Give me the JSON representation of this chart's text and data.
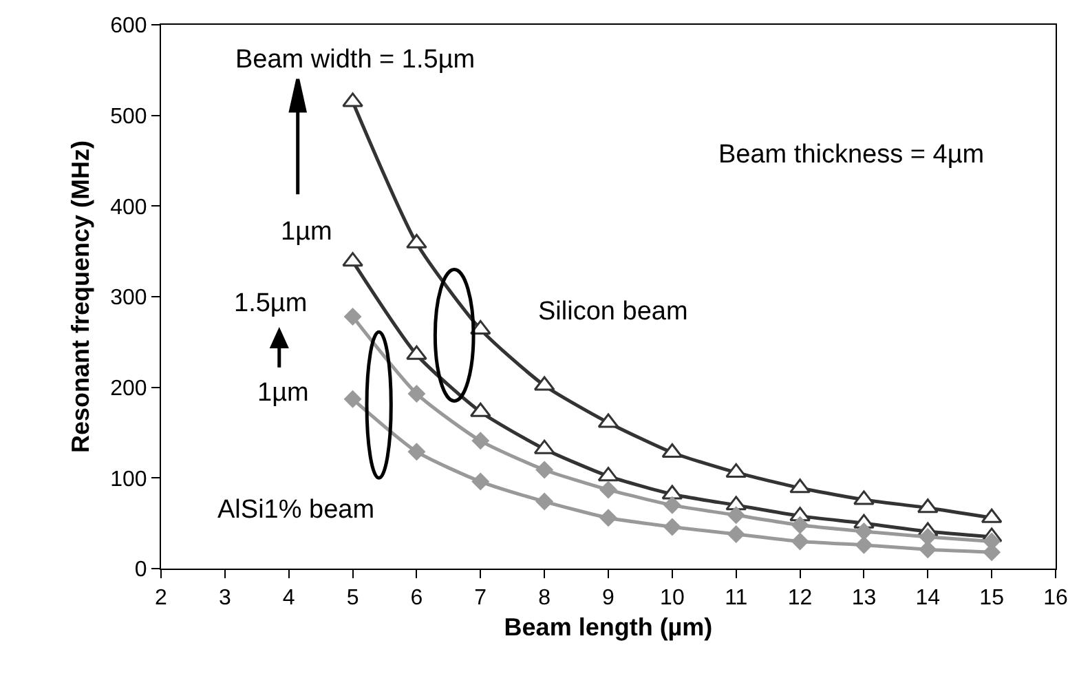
{
  "chart_data": {
    "type": "line",
    "xlabel": "Beam length (µm)",
    "ylabel": "Resonant frequency (MHz)",
    "x": [
      5,
      6,
      7,
      8,
      9,
      10,
      11,
      12,
      13,
      14,
      15
    ],
    "xlim": [
      2,
      16
    ],
    "xticks": [
      2,
      3,
      4,
      5,
      6,
      7,
      8,
      9,
      10,
      11,
      12,
      13,
      14,
      15,
      16
    ],
    "ylim": [
      0,
      600
    ],
    "yticks": [
      0,
      100,
      200,
      300,
      400,
      500,
      600
    ],
    "series": [
      {
        "color": "#333333",
        "marker": "triangle",
        "values": [
          515,
          359,
          264,
          202,
          161,
          128,
          106,
          89,
          76,
          67,
          56
        ]
      },
      {
        "color": "#333333",
        "marker": "triangle",
        "values": [
          339,
          236,
          173,
          132,
          102,
          82,
          70,
          58,
          50,
          41,
          35
        ]
      },
      {
        "color": "#999999",
        "marker": "diamond",
        "values": [
          278,
          193,
          141,
          109,
          87,
          70,
          59,
          48,
          41,
          35,
          30
        ]
      },
      {
        "color": "#999999",
        "marker": "diamond",
        "values": [
          187,
          129,
          96,
          74,
          56,
          46,
          38,
          30,
          26,
          21,
          18
        ]
      }
    ],
    "annotations": [
      "Beam width = 1.5µm",
      "Beam thickness = 4µm",
      "1µm",
      "1.5µm",
      "1µm",
      "Silicon beam",
      "AlSi1% beam"
    ]
  }
}
